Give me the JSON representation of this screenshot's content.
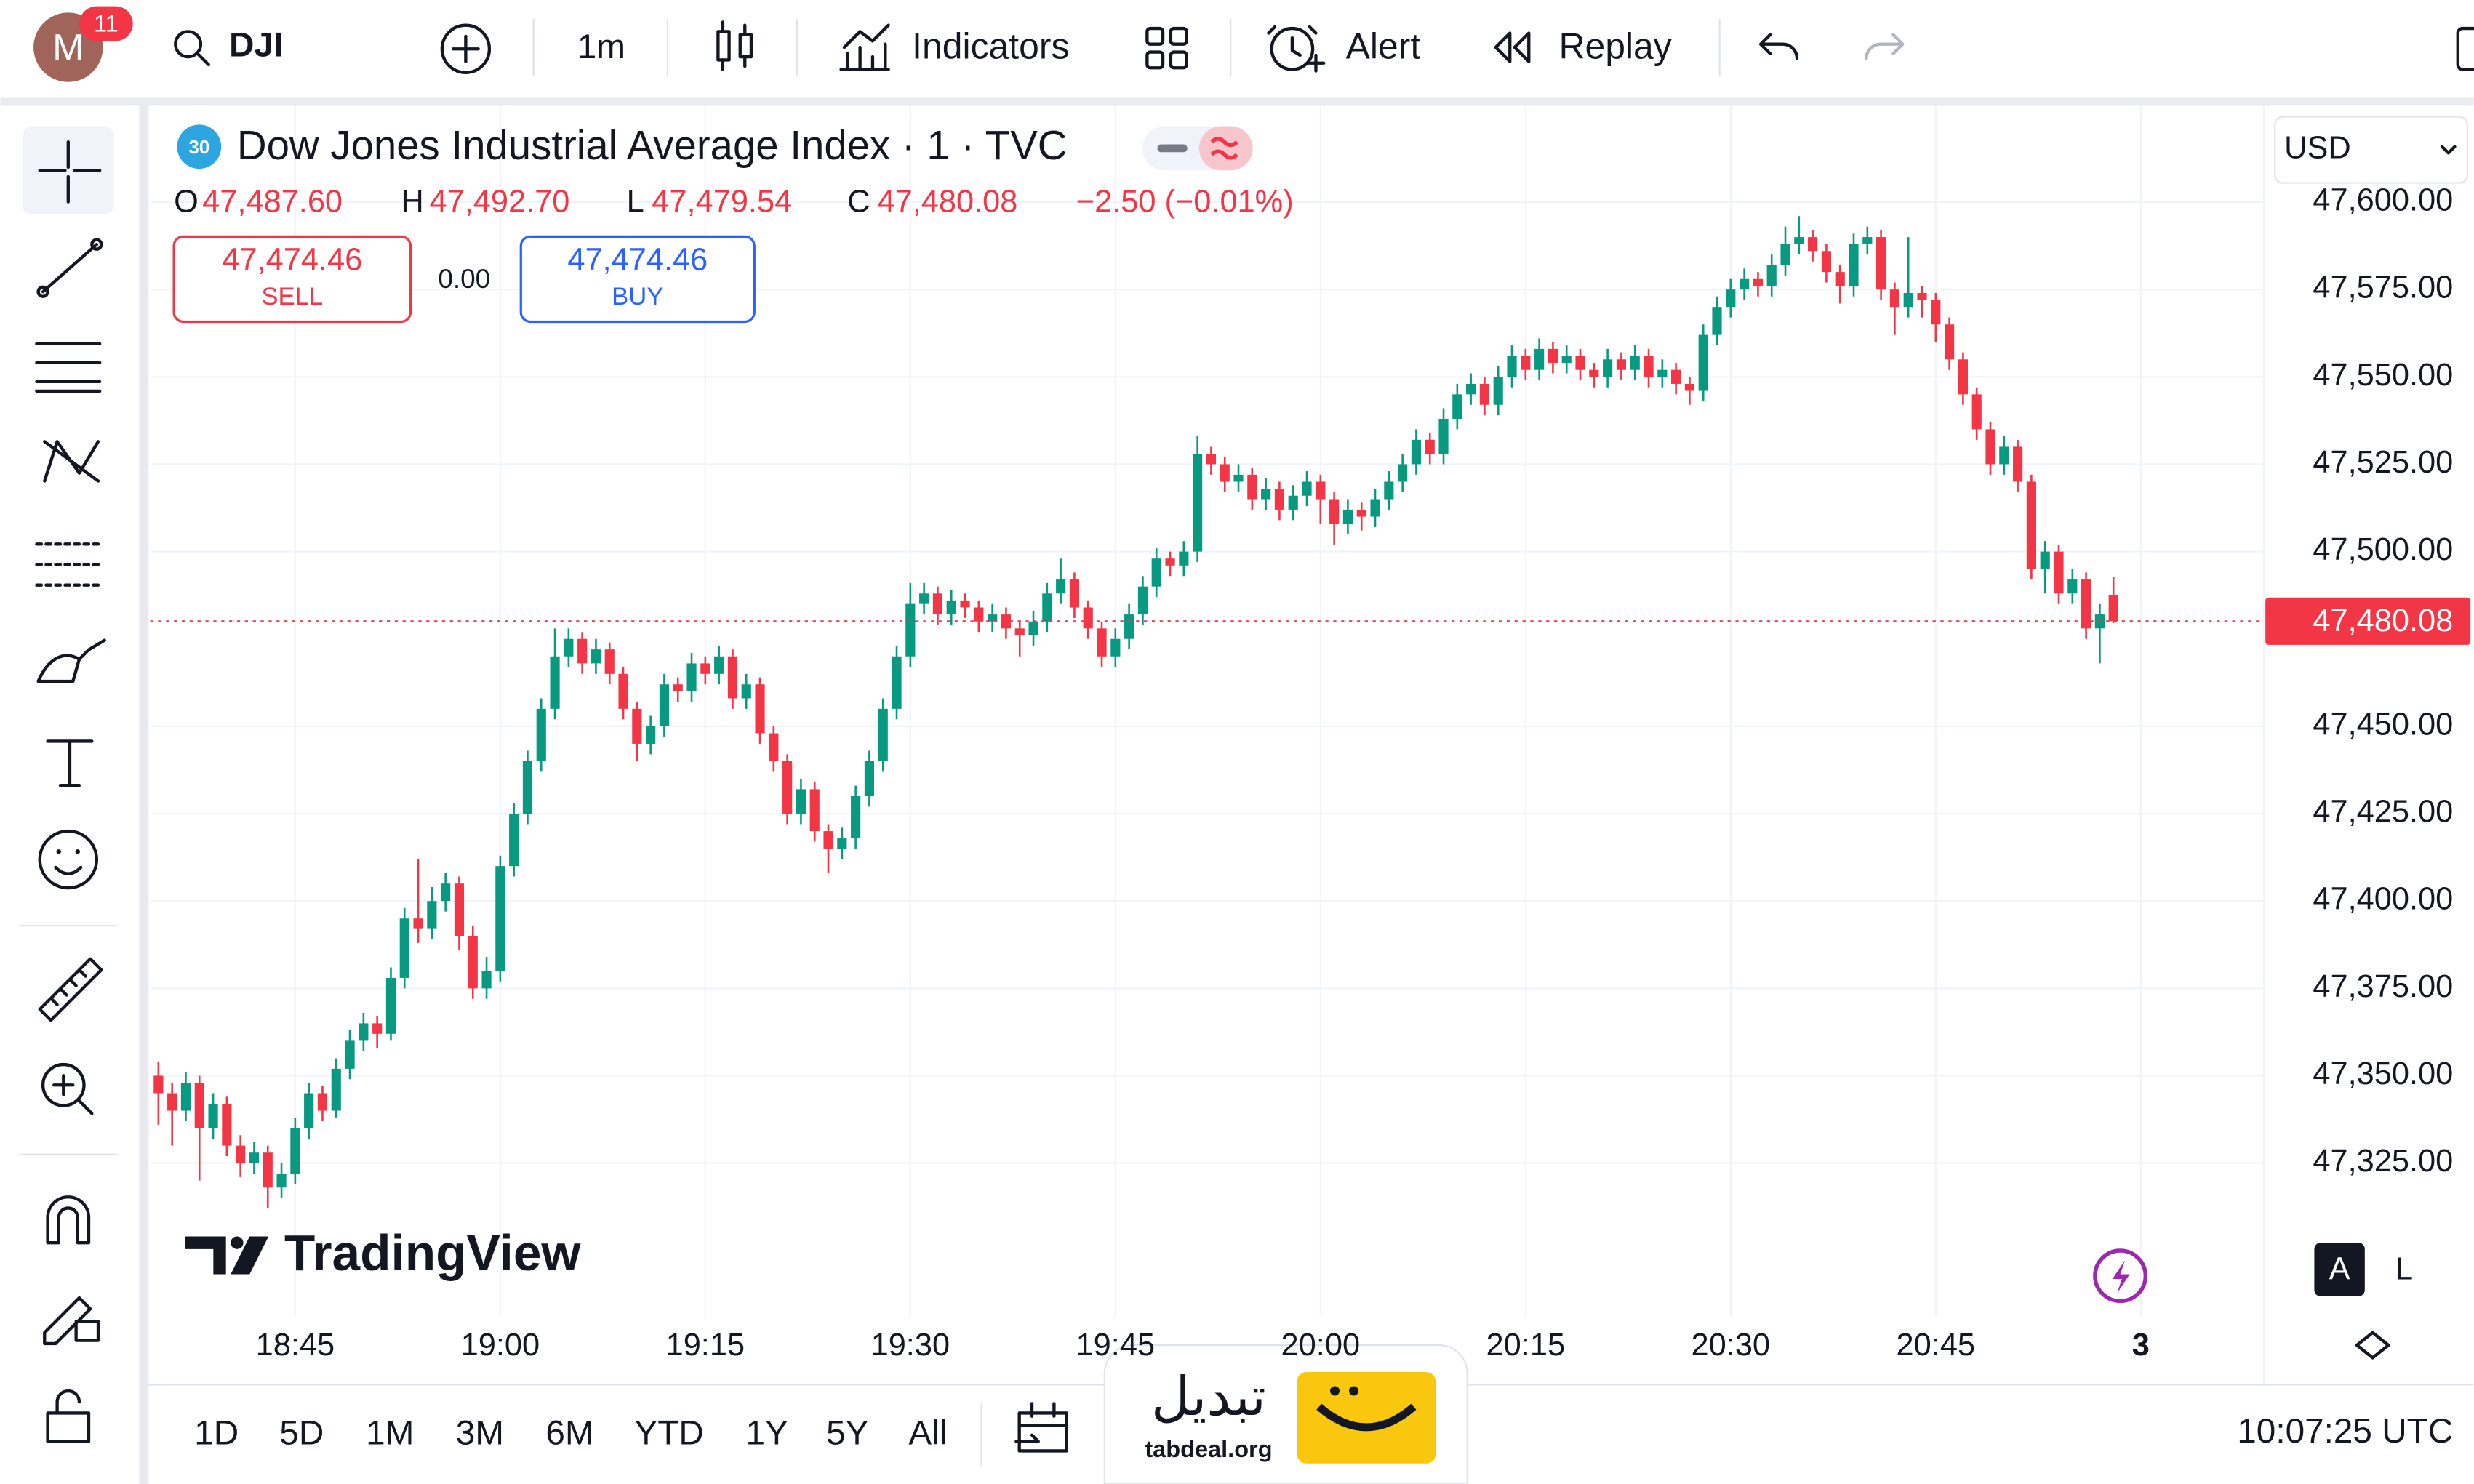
{
  "toolbar": {
    "avatar": "M",
    "badge": "11",
    "symbol": "DJI",
    "interval": "1m",
    "indicators": "Indicators",
    "alert": "Alert",
    "replay": "Replay"
  },
  "legend": {
    "badge": "30",
    "title": "Dow Jones Industrial Average Index · 1 · TVC",
    "o_label": "O",
    "open": "47,487.60",
    "h_label": "H",
    "high": "47,492.70",
    "l_label": "L",
    "low": "47,479.54",
    "c_label": "C",
    "close": "47,480.08",
    "change": "−2.50 (−0.01%)"
  },
  "trade": {
    "sell_price": "47,474.46",
    "sell": "SELL",
    "spread": "0.00",
    "buy_price": "47,474.46",
    "buy": "BUY"
  },
  "currency": "USD",
  "chart_data": {
    "type": "candlestick",
    "up_color": "#089981",
    "down_color": "#f23645",
    "grid": true,
    "xlim": [
      -0.6,
      154
    ],
    "xticks": [
      {
        "value": 10,
        "label": "18:45"
      },
      {
        "value": 25,
        "label": "19:00"
      },
      {
        "value": 40,
        "label": "19:15"
      },
      {
        "value": 55,
        "label": "19:30"
      },
      {
        "value": 70,
        "label": "19:45"
      },
      {
        "value": 85,
        "label": "20:00"
      },
      {
        "value": 100,
        "label": "20:15"
      },
      {
        "value": 115,
        "label": "20:30"
      },
      {
        "value": 130,
        "label": "20:45"
      },
      {
        "value": 145,
        "label": "3"
      }
    ],
    "ylim": [
      47281,
      47624
    ],
    "yticks": [
      {
        "value": 47325,
        "label": "47,325.00"
      },
      {
        "value": 47350,
        "label": "47,350.00"
      },
      {
        "value": 47375,
        "label": "47,375.00"
      },
      {
        "value": 47400,
        "label": "47,400.00"
      },
      {
        "value": 47425,
        "label": "47,425.00"
      },
      {
        "value": 47450,
        "label": "47,450.00"
      },
      {
        "value": 47500,
        "label": "47,500.00"
      },
      {
        "value": 47525,
        "label": "47,525.00"
      },
      {
        "value": 47550,
        "label": "47,550.00"
      },
      {
        "value": 47575,
        "label": "47,575.00"
      },
      {
        "value": 47600,
        "label": "47,600.00"
      }
    ],
    "last_price": {
      "value": 47480.08,
      "label": "47,480.08"
    },
    "candles": [
      [
        47350,
        47354,
        47336,
        47345
      ],
      [
        47345,
        47348,
        47330,
        47340
      ],
      [
        47340,
        47351,
        47337,
        47348
      ],
      [
        47348,
        47350,
        47320,
        47335
      ],
      [
        47335,
        47345,
        47332,
        47342
      ],
      [
        47342,
        47344,
        47327,
        47330
      ],
      [
        47330,
        47333,
        47321,
        47325
      ],
      [
        47325,
        47331,
        47322,
        47328
      ],
      [
        47328,
        47330,
        47312,
        47318
      ],
      [
        47318,
        47325,
        47315,
        47322
      ],
      [
        47322,
        47338,
        47319,
        47335
      ],
      [
        47335,
        47348,
        47332,
        47345
      ],
      [
        47345,
        47347,
        47337,
        47340
      ],
      [
        47340,
        47355,
        47338,
        47352
      ],
      [
        47352,
        47363,
        47349,
        47360
      ],
      [
        47360,
        47368,
        47357,
        47365
      ],
      [
        47365,
        47367,
        47358,
        47362
      ],
      [
        47362,
        47381,
        47360,
        47378
      ],
      [
        47378,
        47398,
        47375,
        47395
      ],
      [
        47395,
        47412,
        47388,
        47392
      ],
      [
        47392,
        47404,
        47389,
        47400
      ],
      [
        47400,
        47408,
        47397,
        47405
      ],
      [
        47405,
        47407,
        47386,
        47390
      ],
      [
        47390,
        47393,
        47372,
        47375
      ],
      [
        47375,
        47384,
        47372,
        47380
      ],
      [
        47380,
        47413,
        47377,
        47410
      ],
      [
        47410,
        47428,
        47407,
        47425
      ],
      [
        47425,
        47443,
        47422,
        47440
      ],
      [
        47440,
        47458,
        47437,
        47455
      ],
      [
        47455,
        47478,
        47452,
        47470
      ],
      [
        47470,
        47478,
        47467,
        47475
      ],
      [
        47475,
        47477,
        47465,
        47468
      ],
      [
        47468,
        47475,
        47465,
        47472
      ],
      [
        47472,
        47474,
        47462,
        47465
      ],
      [
        47465,
        47467,
        47452,
        47455
      ],
      [
        47455,
        47457,
        47440,
        47445
      ],
      [
        47445,
        47453,
        47442,
        47450
      ],
      [
        47450,
        47465,
        47447,
        47462
      ],
      [
        47462,
        47464,
        47457,
        47460
      ],
      [
        47460,
        47471,
        47457,
        47468
      ],
      [
        47468,
        47470,
        47462,
        47465
      ],
      [
        47465,
        47473,
        47462,
        47470
      ],
      [
        47470,
        47472,
        47455,
        47458
      ],
      [
        47458,
        47465,
        47455,
        47462
      ],
      [
        47462,
        47464,
        47445,
        47448
      ],
      [
        47448,
        47450,
        47437,
        47440
      ],
      [
        47440,
        47442,
        47422,
        47425
      ],
      [
        47425,
        47435,
        47422,
        47432
      ],
      [
        47432,
        47434,
        47417,
        47420
      ],
      [
        47420,
        47422,
        47408,
        47415
      ],
      [
        47415,
        47421,
        47412,
        47418
      ],
      [
        47418,
        47433,
        47415,
        47430
      ],
      [
        47430,
        47443,
        47427,
        47440
      ],
      [
        47440,
        47458,
        47437,
        47455
      ],
      [
        47455,
        47473,
        47452,
        47470
      ],
      [
        47470,
        47491,
        47467,
        47485
      ],
      [
        47485,
        47491,
        47482,
        47488
      ],
      [
        47488,
        47490,
        47479,
        47482
      ],
      [
        47482,
        47489,
        47479,
        47486
      ],
      [
        47486,
        47488,
        47481,
        47484
      ],
      [
        47484,
        47486,
        47477,
        47480
      ],
      [
        47480,
        47485,
        47477,
        47482
      ],
      [
        47482,
        47484,
        47475,
        47478
      ],
      [
        47478,
        47480,
        47470,
        47476
      ],
      [
        47476,
        47483,
        47473,
        47480
      ],
      [
        47480,
        47491,
        47477,
        47488
      ],
      [
        47488,
        47498,
        47485,
        47492
      ],
      [
        47492,
        47494,
        47481,
        47484
      ],
      [
        47484,
        47486,
        47475,
        47478
      ],
      [
        47478,
        47480,
        47467,
        47470
      ],
      [
        47470,
        47478,
        47467,
        47475
      ],
      [
        47475,
        47485,
        47472,
        47482
      ],
      [
        47482,
        47493,
        47479,
        47490
      ],
      [
        47490,
        47501,
        47487,
        47498
      ],
      [
        47498,
        47500,
        47493,
        47496
      ],
      [
        47496,
        47503,
        47493,
        47500
      ],
      [
        47500,
        47533,
        47497,
        47528
      ],
      [
        47528,
        47530,
        47522,
        47525
      ],
      [
        47525,
        47527,
        47517,
        47520
      ],
      [
        47520,
        47525,
        47517,
        47522
      ],
      [
        47522,
        47524,
        47512,
        47515
      ],
      [
        47515,
        47521,
        47512,
        47518
      ],
      [
        47518,
        47520,
        47509,
        47512
      ],
      [
        47512,
        47519,
        47509,
        47516
      ],
      [
        47516,
        47523,
        47513,
        47520
      ],
      [
        47520,
        47522,
        47508,
        47515
      ],
      [
        47515,
        47517,
        47502,
        47508
      ],
      [
        47508,
        47515,
        47505,
        47512
      ],
      [
        47512,
        47514,
        47506,
        47510
      ],
      [
        47510,
        47518,
        47507,
        47515
      ],
      [
        47515,
        47523,
        47512,
        47520
      ],
      [
        47520,
        47528,
        47517,
        47525
      ],
      [
        47525,
        47535,
        47522,
        47532
      ],
      [
        47532,
        47534,
        47525,
        47528
      ],
      [
        47528,
        47541,
        47525,
        47538
      ],
      [
        47538,
        47548,
        47535,
        47545
      ],
      [
        47545,
        47551,
        47542,
        47548
      ],
      [
        47548,
        47550,
        47539,
        47542
      ],
      [
        47542,
        47553,
        47539,
        47550
      ],
      [
        47550,
        47559,
        47547,
        47556
      ],
      [
        47556,
        47558,
        47549,
        47552
      ],
      [
        47552,
        47561,
        47549,
        47558
      ],
      [
        47558,
        47560,
        47551,
        47554
      ],
      [
        47554,
        47559,
        47551,
        47556
      ],
      [
        47556,
        47558,
        47549,
        47552
      ],
      [
        47552,
        47554,
        47547,
        47550
      ],
      [
        47550,
        47558,
        47547,
        47555
      ],
      [
        47555,
        47557,
        47549,
        47552
      ],
      [
        47552,
        47559,
        47549,
        47556
      ],
      [
        47556,
        47558,
        47547,
        47550
      ],
      [
        47550,
        47555,
        47547,
        47552
      ],
      [
        47552,
        47554,
        47545,
        47548
      ],
      [
        47548,
        47550,
        47542,
        47546
      ],
      [
        47546,
        47565,
        47543,
        47562
      ],
      [
        47562,
        47573,
        47559,
        47570
      ],
      [
        47570,
        47578,
        47567,
        47575
      ],
      [
        47575,
        47581,
        47572,
        47578
      ],
      [
        47578,
        47580,
        47573,
        47576
      ],
      [
        47576,
        47585,
        47573,
        47582
      ],
      [
        47582,
        47593,
        47579,
        47588
      ],
      [
        47588,
        47596,
        47585,
        47590
      ],
      [
        47590,
        47592,
        47583,
        47586
      ],
      [
        47586,
        47588,
        47577,
        47580
      ],
      [
        47580,
        47582,
        47571,
        47576
      ],
      [
        47576,
        47591,
        47573,
        47588
      ],
      [
        47588,
        47593,
        47585,
        47590
      ],
      [
        47590,
        47592,
        47572,
        47575
      ],
      [
        47575,
        47577,
        47562,
        47570
      ],
      [
        47570,
        47590,
        47567,
        47574
      ],
      [
        47574,
        47576,
        47567,
        47572
      ],
      [
        47572,
        47574,
        47560,
        47565
      ],
      [
        47565,
        47567,
        47552,
        47555
      ],
      [
        47555,
        47557,
        47542,
        47545
      ],
      [
        47545,
        47547,
        47532,
        47535
      ],
      [
        47535,
        47537,
        47522,
        47525
      ],
      [
        47525,
        47533,
        47522,
        47530
      ],
      [
        47530,
        47532,
        47517,
        47520
      ],
      [
        47520,
        47522,
        47492,
        47495
      ],
      [
        47495,
        47503,
        47488,
        47500
      ],
      [
        47500,
        47502,
        47485,
        47488
      ],
      [
        47488,
        47495,
        47485,
        47492
      ],
      [
        47492,
        47494,
        47475,
        47478
      ],
      [
        47478,
        47485,
        47468,
        47482
      ],
      [
        47487.6,
        47492.7,
        47479.54,
        47480.08
      ]
    ]
  },
  "watermark": "TradingView",
  "scale_modes": [
    "A",
    "L"
  ],
  "ranges": [
    "1D",
    "5D",
    "1M",
    "3M",
    "6M",
    "YTD",
    "1Y",
    "5Y",
    "All"
  ],
  "clock": "10:07:25 UTC",
  "overlay": {
    "name": "تبدیل",
    "site": "tabdeal.org"
  }
}
